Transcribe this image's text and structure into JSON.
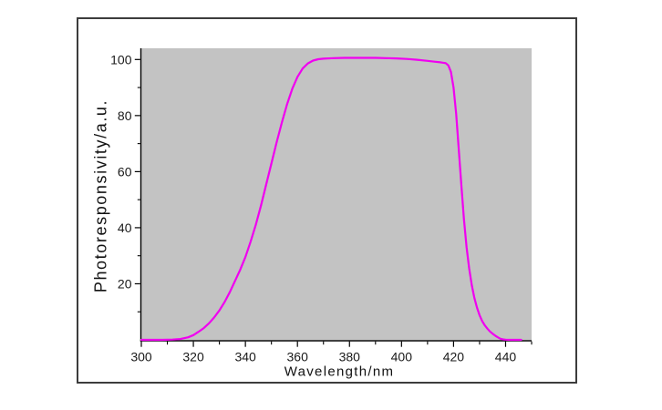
{
  "colors": {
    "curve": "#f000f0",
    "plot_bg": "#c3c3c3",
    "axis": "#000000",
    "tick_label": "#1a1a1a",
    "frame": "#3c3c3c",
    "page_bg": "#ffffff"
  },
  "chart_data": {
    "type": "line",
    "title": "",
    "xlabel": "Wavelength/nm",
    "ylabel": "Photoresponsivity/a.u.",
    "xlim": [
      300,
      450
    ],
    "ylim": [
      0,
      104
    ],
    "x_major_ticks": [
      300,
      320,
      340,
      360,
      380,
      400,
      420,
      440
    ],
    "x_minor_ticks": [
      310,
      330,
      350,
      370,
      390,
      410,
      430,
      450
    ],
    "y_major_ticks": [
      20,
      40,
      60,
      80,
      100
    ],
    "y_minor_ticks": [
      10,
      30,
      50,
      70,
      90
    ],
    "grid": false,
    "legend": false,
    "series": [
      {
        "name": "photoresponsivity",
        "color": "#f000f0",
        "points": [
          [
            300,
            0
          ],
          [
            304,
            0
          ],
          [
            308,
            0
          ],
          [
            312,
            0.1
          ],
          [
            315,
            0.3
          ],
          [
            318,
            0.9
          ],
          [
            320,
            1.7
          ],
          [
            322,
            2.9
          ],
          [
            324,
            4.2
          ],
          [
            326,
            5.9
          ],
          [
            328,
            8
          ],
          [
            330,
            10.5
          ],
          [
            332,
            13.5
          ],
          [
            334,
            17
          ],
          [
            336,
            21
          ],
          [
            338,
            25
          ],
          [
            340,
            29.5
          ],
          [
            342,
            35
          ],
          [
            344,
            41
          ],
          [
            346,
            48
          ],
          [
            348,
            55.5
          ],
          [
            350,
            63
          ],
          [
            352,
            70.5
          ],
          [
            354,
            77.5
          ],
          [
            356,
            84
          ],
          [
            358,
            89.5
          ],
          [
            360,
            93.8
          ],
          [
            362,
            96.8
          ],
          [
            364,
            98.6
          ],
          [
            366,
            99.6
          ],
          [
            368,
            100.1
          ],
          [
            370,
            100.3
          ],
          [
            374,
            100.5
          ],
          [
            378,
            100.6
          ],
          [
            382,
            100.6
          ],
          [
            386,
            100.6
          ],
          [
            390,
            100.6
          ],
          [
            394,
            100.5
          ],
          [
            398,
            100.4
          ],
          [
            402,
            100.2
          ],
          [
            406,
            99.9
          ],
          [
            410,
            99.5
          ],
          [
            413,
            99.2
          ],
          [
            415,
            99
          ],
          [
            417,
            98.7
          ],
          [
            418,
            97.9
          ],
          [
            419,
            95.6
          ],
          [
            420,
            90
          ],
          [
            421,
            80.5
          ],
          [
            422,
            68
          ],
          [
            423,
            55
          ],
          [
            424,
            43
          ],
          [
            425,
            33
          ],
          [
            426,
            25.5
          ],
          [
            427,
            19.5
          ],
          [
            428,
            15
          ],
          [
            429,
            11.5
          ],
          [
            430,
            8.8
          ],
          [
            431,
            6.7
          ],
          [
            432,
            5.2
          ],
          [
            433,
            4
          ],
          [
            434,
            3
          ],
          [
            435,
            2.2
          ],
          [
            436,
            1.5
          ],
          [
            437,
            0.9
          ],
          [
            438,
            0.4
          ],
          [
            439,
            0.15
          ],
          [
            440,
            0.05
          ],
          [
            442,
            0
          ],
          [
            444,
            0
          ],
          [
            446,
            0
          ]
        ]
      }
    ]
  }
}
